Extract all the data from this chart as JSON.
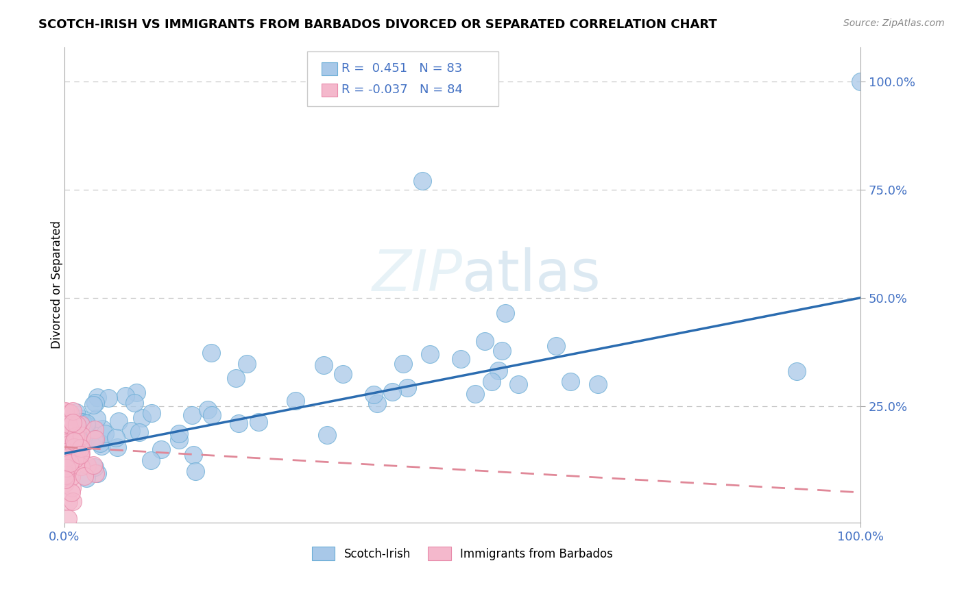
{
  "title": "SCOTCH-IRISH VS IMMIGRANTS FROM BARBADOS DIVORCED OR SEPARATED CORRELATION CHART",
  "source_text": "Source: ZipAtlas.com",
  "ylabel": "Divorced or Separated",
  "watermark": "ZIPatlas",
  "blue_r": 0.451,
  "blue_n": 83,
  "pink_r": -0.037,
  "pink_n": 84,
  "blue_line_start_y": 0.14,
  "blue_line_end_y": 0.5,
  "pink_line_start_y": 0.155,
  "pink_line_end_y": 0.05,
  "xlim": [
    0.0,
    1.0
  ],
  "ylim": [
    -0.02,
    1.08
  ],
  "ytick_values": [
    0.25,
    0.5,
    0.75,
    1.0
  ],
  "ytick_labels": [
    "25.0%",
    "50.0%",
    "75.0%",
    "100.0%"
  ],
  "xtick_values": [
    0.0,
    1.0
  ],
  "xtick_labels": [
    "0.0%",
    "100.0%"
  ],
  "blue_scatter_color": "#a8c8e8",
  "blue_scatter_edge": "#6baed6",
  "pink_scatter_color": "#f4b8cc",
  "pink_scatter_edge": "#e88aaa",
  "blue_line_color": "#2b6cb0",
  "pink_line_color": "#e08898",
  "tick_color": "#4472c4",
  "grid_color": "#c8c8c8",
  "legend_text_color": "#4472c4"
}
